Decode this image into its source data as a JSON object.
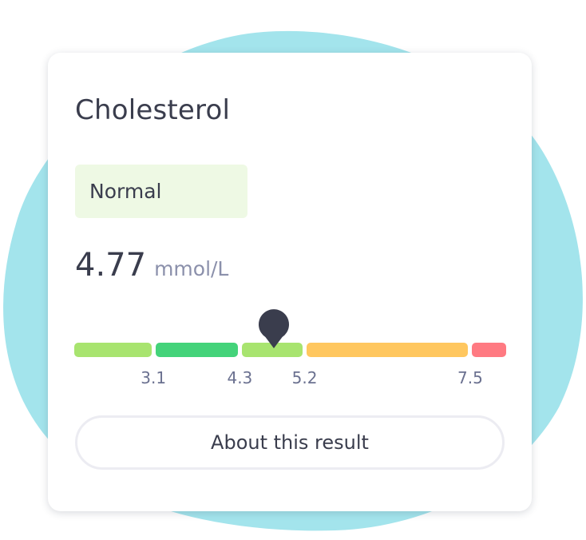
{
  "card": {
    "title": "Cholesterol",
    "status": "Normal",
    "value": "4.77",
    "unit": "mmol/L"
  },
  "range_scale": {
    "reading": 4.77,
    "display_min": 2.0,
    "display_max": 8.0,
    "segments": [
      {
        "from": 2.0,
        "to": 3.1,
        "color": "#a8e46f"
      },
      {
        "from": 3.1,
        "to": 4.3,
        "color": "#44d37a"
      },
      {
        "from": 4.3,
        "to": 5.2,
        "color": "#a8e46f"
      },
      {
        "from": 5.2,
        "to": 7.5,
        "color": "#ffc75f"
      },
      {
        "from": 7.5,
        "to": 8.0,
        "color": "#ff7a82"
      }
    ],
    "tick_labels": [
      "3.1",
      "4.3",
      "5.2",
      "7.5"
    ],
    "marker_color": "#3a3d4d"
  },
  "actions": {
    "about_label": "About this result"
  },
  "colors": {
    "background_blob": "#a3e4ec",
    "text_primary": "#3a3d4d",
    "text_secondary": "#8b90ab",
    "status_badge_bg": "#eef9e4"
  },
  "icons": {
    "marker": "map-pin-icon"
  }
}
